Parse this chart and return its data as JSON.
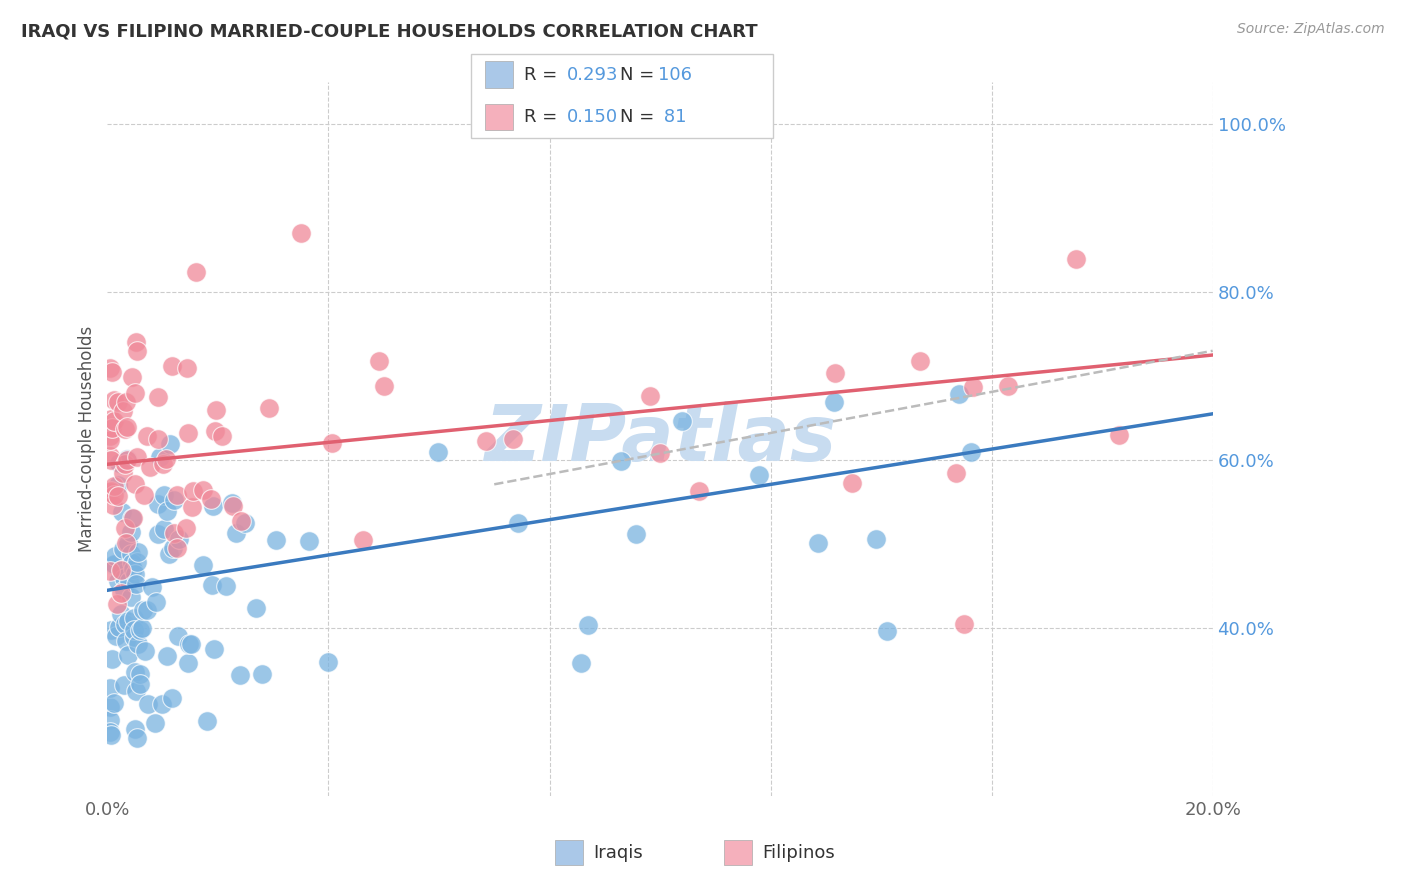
{
  "title": "IRAQI VS FILIPINO MARRIED-COUPLE HOUSEHOLDS CORRELATION CHART",
  "source": "Source: ZipAtlas.com",
  "ylabel": "Married-couple Households",
  "iraqis_label": "Iraqis",
  "filipinos_label": "Filipinos",
  "x_min": 0.0,
  "x_max": 0.2,
  "y_min": 0.2,
  "y_max": 1.05,
  "x_ticks": [
    0.0,
    0.04,
    0.08,
    0.12,
    0.16,
    0.2
  ],
  "x_tick_labels": [
    "0.0%",
    "",
    "",
    "",
    "",
    "20.0%"
  ],
  "y_ticks_right": [
    0.4,
    0.6,
    0.8,
    1.0
  ],
  "y_tick_labels_right": [
    "40.0%",
    "60.0%",
    "80.0%",
    "100.0%"
  ],
  "iraqis_color": "#7ab3e0",
  "filipinos_color": "#f08898",
  "iraqis_line_color": "#3a7abf",
  "filipinos_line_color": "#e06070",
  "trend_line_dashed_color": "#bbbbbb",
  "background_color": "#ffffff",
  "grid_color": "#cccccc",
  "title_color": "#333333",
  "axis_label_color": "#555555",
  "right_tick_color": "#5599dd",
  "watermark_color": "#c8dcf0",
  "iraqis_R": 0.293,
  "filipinos_R": 0.15,
  "iraqis_N": 106,
  "filipinos_N": 81,
  "legend_iraqis_color": "#aac8e8",
  "legend_filipinos_color": "#f5b0bc"
}
